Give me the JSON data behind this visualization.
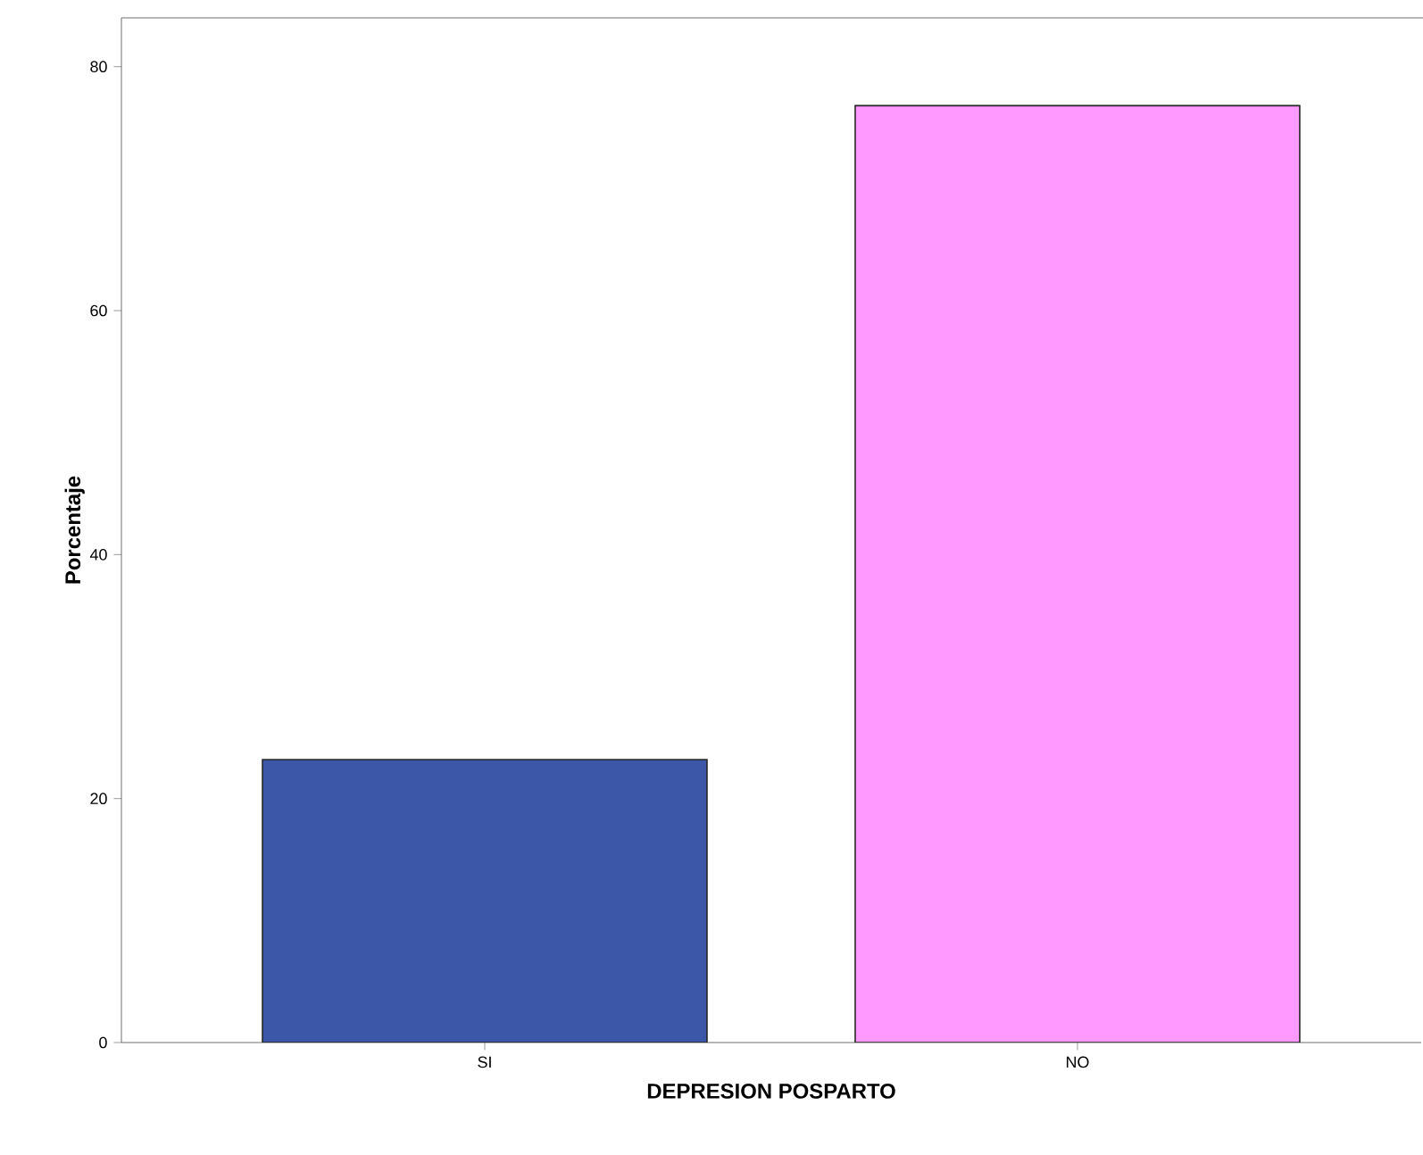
{
  "chart_data": {
    "type": "bar",
    "xlabel": "DEPRESION POSPARTO",
    "ylabel": "Porcentaje",
    "categories": [
      "SI",
      "NO"
    ],
    "values": [
      23.2,
      76.8
    ],
    "colors": [
      "#3d57a8",
      "#ff99ff"
    ],
    "ylim": [
      0,
      84
    ],
    "yticks": [
      0,
      20,
      40,
      60,
      80
    ],
    "grid": false
  }
}
